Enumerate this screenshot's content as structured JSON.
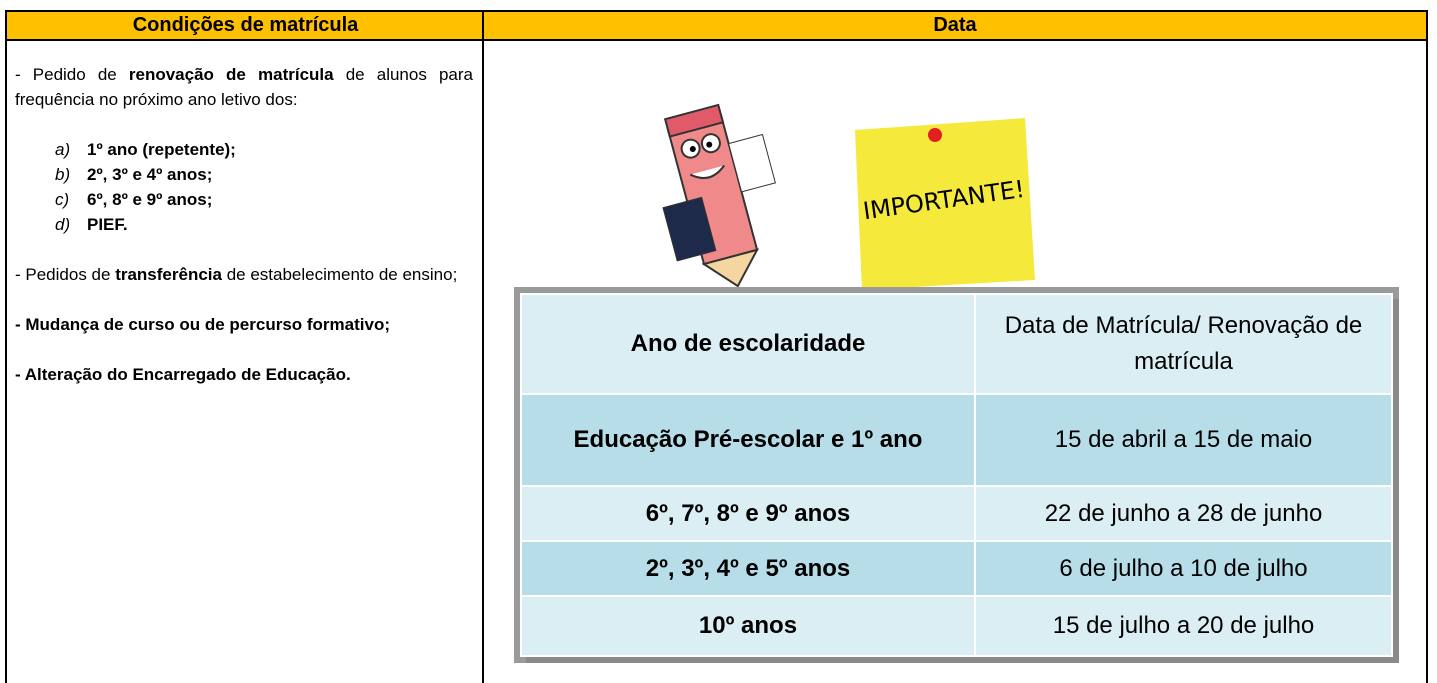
{
  "header": {
    "col1": "Condições de matrícula",
    "col2": "Data"
  },
  "left": {
    "p1": {
      "before": "- Pedido de ",
      "bold": "renovação de matrícula",
      "after": " de alunos para frequência no próximo ano letivo dos:"
    },
    "list": [
      {
        "marker": "a)",
        "text": "1º ano (repetente);"
      },
      {
        "marker": "b)",
        "text": "2º, 3º e 4º anos;"
      },
      {
        "marker": "c)",
        "text": "6º, 8º e 9º anos;"
      },
      {
        "marker": "d)",
        "text": "PIEF."
      }
    ],
    "p2": {
      "before": "- Pedidos de ",
      "bold": "transferência",
      "after": " de estabelecimento de ensino;"
    },
    "p3": "- Mudança de curso ou de percurso formativo;",
    "p4": "- Alteração do Encarregado de Educação."
  },
  "note": "IMPORTANTE!",
  "table": {
    "headers": [
      "Ano de escolaridade",
      "Data de Matrícula/ Renovação de matrícula"
    ],
    "rows": [
      [
        "Educação Pré-escolar e 1º ano",
        "15 de abril a 15 de maio"
      ],
      [
        "6º, 7º, 8º e 9º anos",
        "22 de junho a 28 de junho"
      ],
      [
        "2º, 3º, 4º e 5º anos",
        "6 de julho a 10 de julho"
      ],
      [
        "10º anos",
        "15 de julho a 20 de julho"
      ]
    ]
  }
}
